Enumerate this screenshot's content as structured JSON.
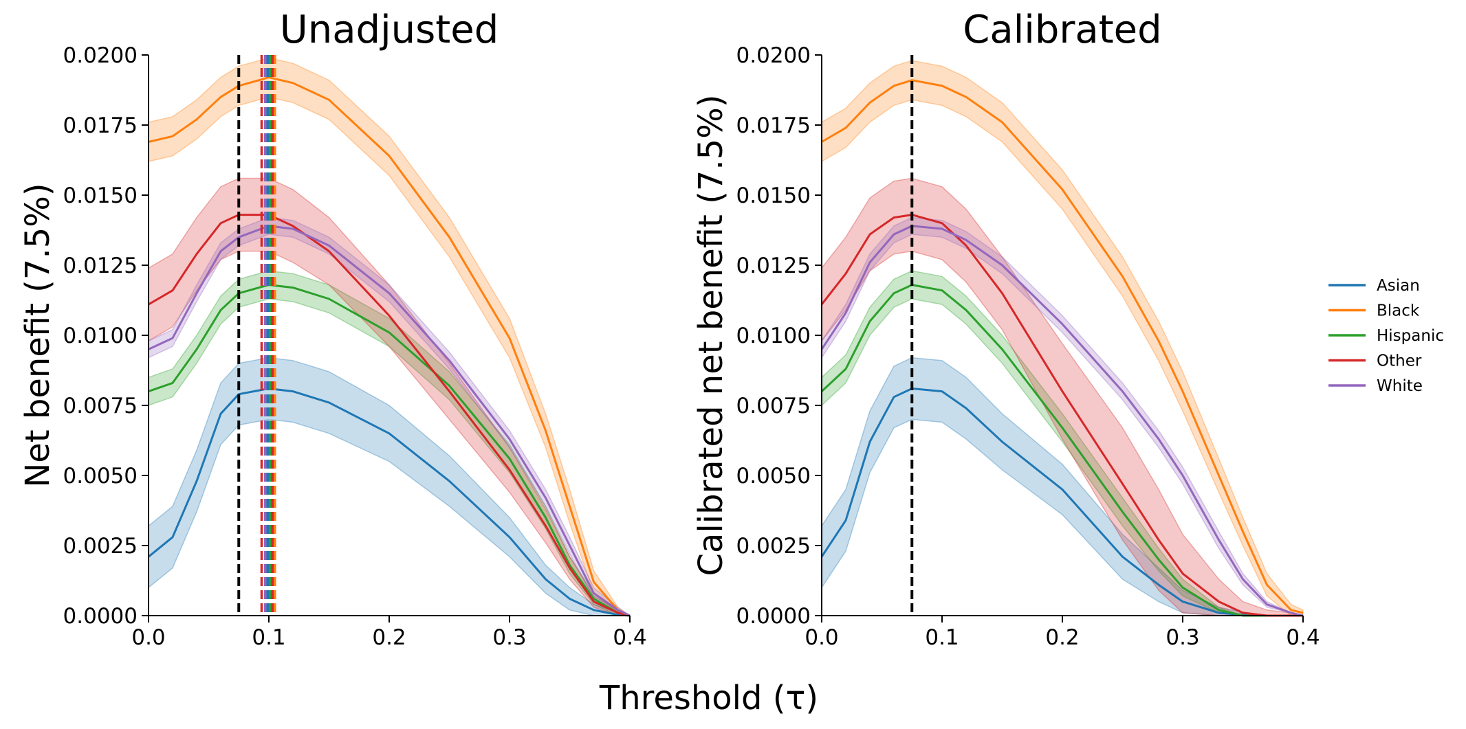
{
  "figure": {
    "shared_xlabel": "Threshold (τ)"
  },
  "legend": {
    "entries": [
      {
        "name": "Asian",
        "color": "#1f77b4"
      },
      {
        "name": "Black",
        "color": "#ff7f0e"
      },
      {
        "name": "Hispanic",
        "color": "#2ca02c"
      },
      {
        "name": "Other",
        "color": "#d62728"
      },
      {
        "name": "White",
        "color": "#9467bd"
      }
    ]
  },
  "chart_data": [
    {
      "type": "line",
      "title": "Unadjusted",
      "xlabel": "Threshold (τ)",
      "ylabel": "Net benefit (7.5%)",
      "xlim": [
        0.0,
        0.4
      ],
      "ylim": [
        0.0,
        0.02
      ],
      "x_ticks": [
        "0.0",
        "0.1",
        "0.2",
        "0.3",
        "0.4"
      ],
      "y_ticks": [
        "0.0000",
        "0.0025",
        "0.0050",
        "0.0075",
        "0.0100",
        "0.0125",
        "0.0150",
        "0.0175",
        "0.0200"
      ],
      "x": [
        0.0,
        0.02,
        0.04,
        0.06,
        0.075,
        0.1,
        0.12,
        0.15,
        0.2,
        0.25,
        0.3,
        0.33,
        0.35,
        0.37,
        0.39,
        0.4
      ],
      "series": [
        {
          "name": "Asian",
          "color": "#1f77b4",
          "values": [
            0.0021,
            0.0028,
            0.0048,
            0.0072,
            0.0079,
            0.0081,
            0.008,
            0.0076,
            0.0065,
            0.0048,
            0.0028,
            0.0013,
            0.0006,
            0.0002,
            3e-05,
            0.0
          ],
          "band_halfwidth": [
            0.0011,
            0.0011,
            0.0011,
            0.0011,
            0.0011,
            0.0011,
            0.0011,
            0.0011,
            0.001,
            0.0009,
            0.0007,
            0.0005,
            0.0004,
            0.0002,
            0.0001,
            0.0
          ]
        },
        {
          "name": "Black",
          "color": "#ff7f0e",
          "values": [
            0.0169,
            0.0171,
            0.0177,
            0.0185,
            0.0189,
            0.0192,
            0.019,
            0.0184,
            0.0164,
            0.0135,
            0.0099,
            0.0066,
            0.0039,
            0.0012,
            0.0002,
            0.0
          ],
          "band_halfwidth": [
            0.0007,
            0.0007,
            0.0007,
            0.0007,
            0.0007,
            0.0007,
            0.0007,
            0.0007,
            0.0007,
            0.0007,
            0.0007,
            0.0006,
            0.0006,
            0.0004,
            0.0001,
            0.0
          ]
        },
        {
          "name": "Hispanic",
          "color": "#2ca02c",
          "values": [
            0.008,
            0.0083,
            0.0095,
            0.0109,
            0.0115,
            0.0118,
            0.0117,
            0.0113,
            0.0101,
            0.0082,
            0.0056,
            0.0035,
            0.0018,
            0.0006,
            0.0001,
            0.0
          ],
          "band_halfwidth": [
            0.0005,
            0.0005,
            0.0005,
            0.0005,
            0.0005,
            0.0005,
            0.0005,
            0.0005,
            0.0005,
            0.0005,
            0.0005,
            0.0004,
            0.0003,
            0.0002,
            0.0001,
            0.0
          ]
        },
        {
          "name": "Other",
          "color": "#d62728",
          "values": [
            0.0111,
            0.0116,
            0.0129,
            0.014,
            0.0143,
            0.0143,
            0.0139,
            0.013,
            0.0107,
            0.008,
            0.0052,
            0.0032,
            0.0017,
            0.0005,
            0.0001,
            0.0
          ],
          "band_halfwidth": [
            0.0013,
            0.0013,
            0.0013,
            0.0013,
            0.0013,
            0.0013,
            0.0013,
            0.0012,
            0.0011,
            0.001,
            0.0008,
            0.0006,
            0.0004,
            0.0002,
            0.0001,
            0.0
          ]
        },
        {
          "name": "White",
          "color": "#9467bd",
          "values": [
            0.0095,
            0.0099,
            0.0115,
            0.013,
            0.0135,
            0.0139,
            0.0138,
            0.0132,
            0.0115,
            0.0091,
            0.0063,
            0.0042,
            0.0025,
            0.0008,
            0.0002,
            0.0
          ],
          "band_halfwidth": [
            0.0003,
            0.0003,
            0.0003,
            0.0003,
            0.0003,
            0.0003,
            0.0003,
            0.0003,
            0.0003,
            0.0003,
            0.0003,
            0.0003,
            0.0003,
            0.0002,
            0.0001,
            0.0
          ]
        }
      ],
      "vlines": [
        {
          "x": 0.075,
          "color": "#000000"
        },
        {
          "x": 0.094,
          "color": "#d62728"
        },
        {
          "x": 0.097,
          "color": "#9467bd"
        },
        {
          "x": 0.099,
          "color": "#1f77b4"
        },
        {
          "x": 0.101,
          "color": "#2ca02c"
        },
        {
          "x": 0.103,
          "color": "#d62728"
        },
        {
          "x": 0.105,
          "color": "#ff7f0e"
        }
      ],
      "grid": false,
      "legend_position": "right"
    },
    {
      "type": "line",
      "title": "Calibrated",
      "xlabel": "Threshold (τ)",
      "ylabel": "Calibrated net benefit (7.5%)",
      "xlim": [
        0.0,
        0.4
      ],
      "ylim": [
        0.0,
        0.02
      ],
      "x_ticks": [
        "0.0",
        "0.1",
        "0.2",
        "0.3",
        "0.4"
      ],
      "y_ticks": [
        "0.0000",
        "0.0025",
        "0.0050",
        "0.0075",
        "0.0100",
        "0.0125",
        "0.0150",
        "0.0175",
        "0.0200"
      ],
      "x": [
        0.0,
        0.02,
        0.04,
        0.06,
        0.075,
        0.1,
        0.12,
        0.15,
        0.2,
        0.25,
        0.28,
        0.3,
        0.33,
        0.35,
        0.37,
        0.39,
        0.4
      ],
      "series": [
        {
          "name": "Asian",
          "color": "#1f77b4",
          "values": [
            0.0021,
            0.0034,
            0.0062,
            0.0078,
            0.0081,
            0.008,
            0.0074,
            0.0062,
            0.0045,
            0.0021,
            0.0011,
            0.0005,
            0.0001,
            3e-05,
            0.0,
            0.0,
            0.0
          ],
          "band_halfwidth": [
            0.0011,
            0.0011,
            0.0011,
            0.0011,
            0.0011,
            0.0011,
            0.0011,
            0.001,
            0.0009,
            0.0008,
            0.0006,
            0.0004,
            0.0002,
            0.0001,
            0.0,
            0.0,
            0.0
          ]
        },
        {
          "name": "Black",
          "color": "#ff7f0e",
          "values": [
            0.0169,
            0.0174,
            0.0183,
            0.0189,
            0.0191,
            0.0189,
            0.0185,
            0.0176,
            0.0152,
            0.0121,
            0.0098,
            0.008,
            0.005,
            0.003,
            0.0011,
            0.0002,
            0.0001
          ],
          "band_halfwidth": [
            0.0007,
            0.0007,
            0.0007,
            0.0007,
            0.0007,
            0.0007,
            0.0007,
            0.0007,
            0.0007,
            0.0007,
            0.0007,
            0.0007,
            0.0006,
            0.0005,
            0.0004,
            0.0002,
            0.0001
          ]
        },
        {
          "name": "Hispanic",
          "color": "#2ca02c",
          "values": [
            0.008,
            0.0088,
            0.0105,
            0.0115,
            0.0118,
            0.0116,
            0.0109,
            0.0095,
            0.0067,
            0.0037,
            0.002,
            0.001,
            0.0002,
            0.0,
            0.0,
            0.0,
            0.0
          ],
          "band_halfwidth": [
            0.0005,
            0.0005,
            0.0005,
            0.0005,
            0.0005,
            0.0005,
            0.0005,
            0.0005,
            0.0005,
            0.0005,
            0.0004,
            0.0003,
            0.0001,
            0.0,
            0.0,
            0.0,
            0.0
          ]
        },
        {
          "name": "Other",
          "color": "#d62728",
          "values": [
            0.0111,
            0.0122,
            0.0136,
            0.0142,
            0.0143,
            0.014,
            0.0132,
            0.0115,
            0.008,
            0.0047,
            0.0027,
            0.0015,
            0.0005,
            0.0001,
            0.0,
            0.0,
            0.0
          ],
          "band_halfwidth": [
            0.0013,
            0.0013,
            0.0013,
            0.0013,
            0.0013,
            0.0013,
            0.0013,
            0.0013,
            0.0017,
            0.002,
            0.0018,
            0.0014,
            0.0008,
            0.0004,
            0.0002,
            0.0001,
            0.0
          ]
        },
        {
          "name": "White",
          "color": "#9467bd",
          "values": [
            0.0095,
            0.0108,
            0.0126,
            0.0136,
            0.0139,
            0.0138,
            0.0134,
            0.0125,
            0.0104,
            0.008,
            0.0063,
            0.005,
            0.0027,
            0.0013,
            0.0004,
            0.0001,
            0.0
          ],
          "band_halfwidth": [
            0.0003,
            0.0003,
            0.0003,
            0.0003,
            0.0003,
            0.0003,
            0.0003,
            0.0003,
            0.0003,
            0.0003,
            0.0003,
            0.0003,
            0.0003,
            0.0002,
            0.0001,
            0.0,
            0.0
          ]
        }
      ],
      "vlines": [
        {
          "x": 0.075,
          "color": "#000000"
        }
      ],
      "grid": false,
      "legend_position": "right"
    }
  ]
}
